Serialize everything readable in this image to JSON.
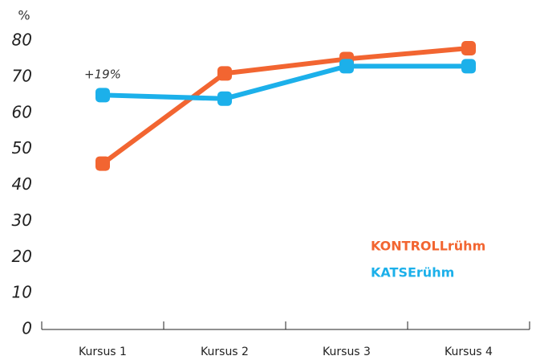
{
  "chart_data": {
    "type": "line",
    "y_label": "%",
    "categories": [
      "Kursus 1",
      "Kursus 2",
      "Kursus 3",
      "Kursus 4"
    ],
    "series": [
      {
        "name": "KONTROLLrühm",
        "color": "#f26531",
        "values": [
          46,
          71,
          75,
          78
        ]
      },
      {
        "name": "KATSErühm",
        "color": "#1cb0ea",
        "values": [
          65,
          64,
          73,
          73
        ]
      }
    ],
    "annotation": "+19%",
    "ylim": [
      0,
      80
    ],
    "yticks": [
      0,
      10,
      20,
      30,
      40,
      50,
      60,
      70,
      80
    ],
    "legend": "lower right"
  }
}
